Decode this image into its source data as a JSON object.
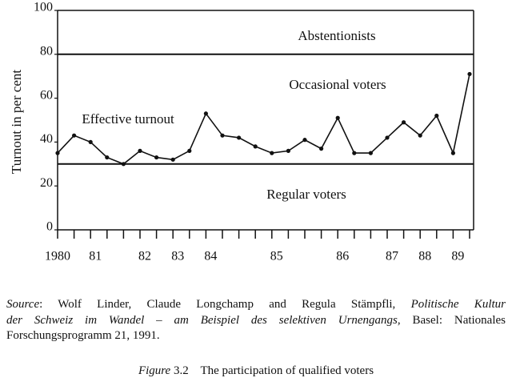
{
  "chart_data": {
    "type": "line",
    "y_label": "Turnout in per cent",
    "categories": [
      "1980",
      null,
      "81",
      null,
      null,
      "82",
      null,
      "83",
      null,
      "84",
      null,
      null,
      null,
      "85",
      null,
      null,
      null,
      "86",
      null,
      null,
      "87",
      null,
      "88",
      null,
      "89",
      null
    ],
    "values": [
      35,
      43,
      40,
      33,
      30,
      36,
      33,
      32,
      36,
      53,
      43,
      42,
      38,
      35,
      36,
      41,
      37,
      51,
      35,
      35,
      42,
      49,
      43,
      52,
      35,
      71
    ],
    "color": "#111111",
    "ylim": [
      0,
      100
    ],
    "yticks": [
      0,
      20,
      40,
      60,
      80,
      100
    ],
    "reference_lines": [
      80,
      30
    ],
    "annotations": [
      "Abstentionists",
      "Occasional voters",
      "Effective turnout",
      "Regular voters"
    ]
  },
  "source": {
    "lines": [
      [
        {
          "text": "Source",
          "italic": true
        },
        {
          "text": ": Wolf Linder, Claude Longchamp and Regula Stämpfli, ",
          "italic": false
        },
        {
          "text": "Politische Kultur",
          "italic": true
        }
      ],
      [
        {
          "text": "der Schweiz im Wandel – am Beispiel des selektiven Urnengangs",
          "italic": true
        },
        {
          "text": ", Basel: Nationales",
          "italic": false
        }
      ],
      [
        {
          "text": "Forschungsprogramm 21, 1991.",
          "italic": false
        }
      ]
    ]
  },
  "caption": [
    {
      "text": "Figure",
      "italic": true
    },
    {
      "text": " 3.2    The participation of qualified voters",
      "italic": false
    }
  ]
}
